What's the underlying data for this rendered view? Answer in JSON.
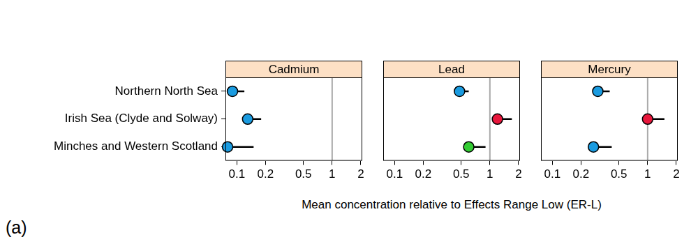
{
  "chart_data": [
    {
      "type": "scatter",
      "title": "Cadmium",
      "orientation": "horizontal",
      "log": "x",
      "grid": false,
      "categories": [
        "Northern North Sea",
        "Irish Sea (Clyde and Solway)",
        "Minches and Western Scotland"
      ],
      "values": [
        0.09,
        0.13,
        0.08
      ],
      "upper": [
        0.12,
        0.18,
        0.15
      ],
      "colors": [
        "#1a9be0",
        "#1a9be0",
        "#1a9be0"
      ],
      "xlim": [
        0.076,
        2.07
      ],
      "xticks": [
        0.1,
        0.2,
        0.5,
        1,
        2
      ],
      "reference_line": 1
    },
    {
      "type": "scatter",
      "title": "Lead",
      "orientation": "horizontal",
      "log": "x",
      "grid": false,
      "tick_labels": "x",
      "categories": [
        "Northern North Sea",
        "Irish Sea (Clyde and Solway)",
        "Minches and Western Scotland"
      ],
      "values": [
        0.48,
        1.2,
        0.6
      ],
      "upper": [
        0.6,
        1.7,
        0.9
      ],
      "colors": [
        "#1a9be0",
        "#e8173c",
        "#33cc33"
      ],
      "xlim": [
        0.076,
        2.07
      ],
      "xticks": [
        0.1,
        0.2,
        0.5,
        1,
        2
      ],
      "reference_line": 1
    },
    {
      "type": "scatter",
      "title": "Mercury",
      "orientation": "horizontal",
      "log": "x",
      "grid": false,
      "tick_labels": "x",
      "categories": [
        "Northern North Sea",
        "Irish Sea (Clyde and Solway)",
        "Minches and Western Scotland"
      ],
      "values": [
        0.3,
        1.0,
        0.27
      ],
      "upper": [
        0.4,
        1.5,
        0.42
      ],
      "colors": [
        "#1a9be0",
        "#e8173c",
        "#1a9be0"
      ],
      "xlim": [
        0.076,
        2.07
      ],
      "xticks": [
        0.1,
        0.2,
        0.5,
        1,
        2
      ],
      "reference_line": 1
    }
  ],
  "xlabel": "Mean concentration relative to Effects Range Low (ER-L)",
  "panel_label": "(a)"
}
